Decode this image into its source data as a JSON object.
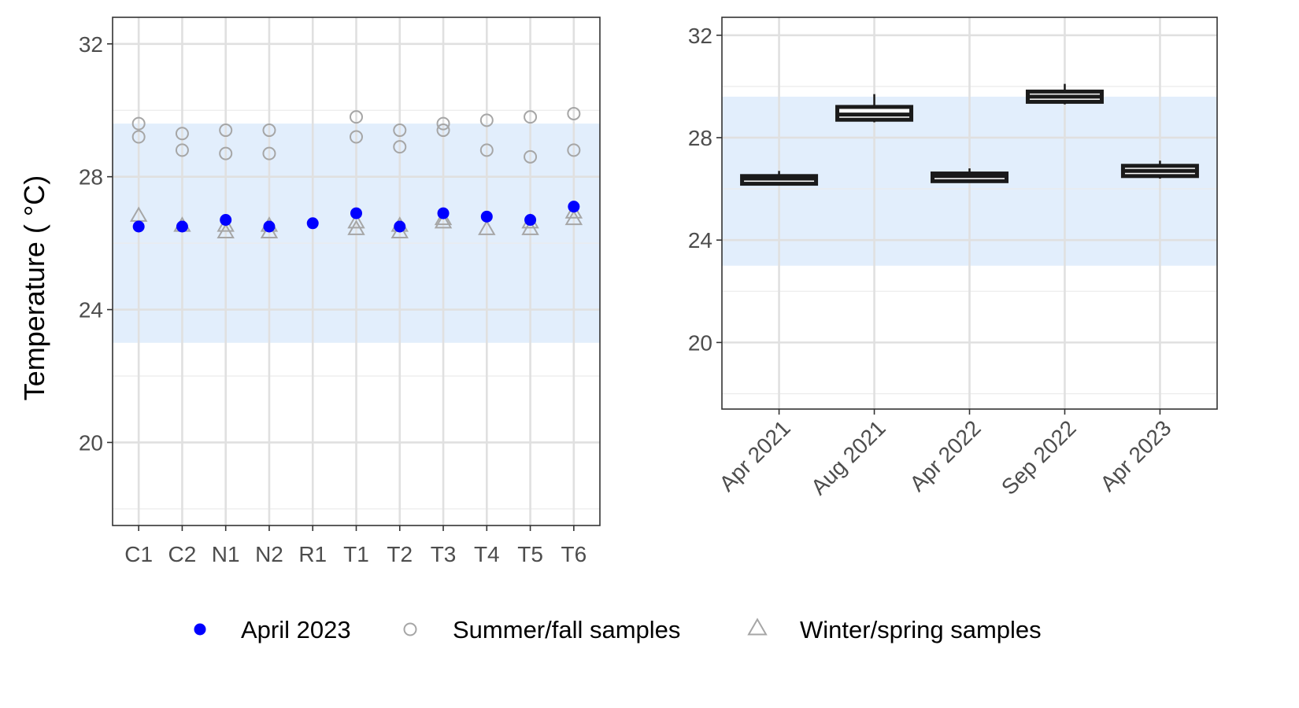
{
  "chart_data": [
    {
      "type": "scatter",
      "ylabel": "Temperature ( °C)",
      "xlabel": "",
      "ylim": [
        17.5,
        32.8
      ],
      "y_ticks": [
        20,
        24,
        28,
        32
      ],
      "grid": true,
      "reference_band": {
        "ymin": 23,
        "ymax": 29.6,
        "color": "#e2eefc"
      },
      "categories": [
        "C1",
        "C2",
        "N1",
        "N2",
        "R1",
        "T1",
        "T2",
        "T3",
        "T4",
        "T5",
        "T6"
      ],
      "series": [
        {
          "name": "April 2023",
          "marker": "filled-circle",
          "color": "#0000ff",
          "values": [
            26.5,
            26.5,
            26.7,
            26.5,
            26.6,
            26.9,
            26.5,
            26.9,
            26.8,
            26.7,
            27.1
          ]
        },
        {
          "name": "Summer/fall samples",
          "marker": "open-circle",
          "color": "#a6a6a6",
          "points": [
            {
              "x": "C1",
              "y": 29.6
            },
            {
              "x": "C1",
              "y": 29.2
            },
            {
              "x": "C2",
              "y": 29.3
            },
            {
              "x": "C2",
              "y": 28.8
            },
            {
              "x": "N1",
              "y": 29.4
            },
            {
              "x": "N1",
              "y": 28.7
            },
            {
              "x": "N2",
              "y": 29.4
            },
            {
              "x": "N2",
              "y": 28.7
            },
            {
              "x": "T1",
              "y": 29.8
            },
            {
              "x": "T1",
              "y": 29.2
            },
            {
              "x": "T2",
              "y": 29.4
            },
            {
              "x": "T2",
              "y": 28.9
            },
            {
              "x": "T3",
              "y": 29.6
            },
            {
              "x": "T3",
              "y": 29.4
            },
            {
              "x": "T4",
              "y": 29.7
            },
            {
              "x": "T4",
              "y": 28.8
            },
            {
              "x": "T5",
              "y": 29.8
            },
            {
              "x": "T5",
              "y": 28.6
            },
            {
              "x": "T6",
              "y": 29.9
            },
            {
              "x": "T6",
              "y": 28.8
            }
          ]
        },
        {
          "name": "Winter/spring samples",
          "marker": "open-triangle",
          "color": "#a6a6a6",
          "points": [
            {
              "x": "C1",
              "y": 26.8
            },
            {
              "x": "C2",
              "y": 26.5
            },
            {
              "x": "N1",
              "y": 26.5
            },
            {
              "x": "N1",
              "y": 26.3
            },
            {
              "x": "N2",
              "y": 26.5
            },
            {
              "x": "N2",
              "y": 26.3
            },
            {
              "x": "T1",
              "y": 26.6
            },
            {
              "x": "T1",
              "y": 26.4
            },
            {
              "x": "T2",
              "y": 26.5
            },
            {
              "x": "T2",
              "y": 26.3
            },
            {
              "x": "T3",
              "y": 26.7
            },
            {
              "x": "T3",
              "y": 26.6
            },
            {
              "x": "T4",
              "y": 26.4
            },
            {
              "x": "T5",
              "y": 26.6
            },
            {
              "x": "T5",
              "y": 26.4
            },
            {
              "x": "T6",
              "y": 26.9
            },
            {
              "x": "T6",
              "y": 26.7
            }
          ]
        }
      ]
    },
    {
      "type": "box",
      "xlabel": "",
      "ylabel": "",
      "ylim": [
        17.4,
        32.7
      ],
      "y_ticks": [
        20,
        24,
        28,
        32
      ],
      "grid": true,
      "reference_band": {
        "ymin": 23,
        "ymax": 29.6,
        "color": "#e2eefc"
      },
      "categories": [
        "Apr 2021",
        "Aug 2021",
        "Apr 2022",
        "Sep 2022",
        "Apr 2023"
      ],
      "boxes": [
        {
          "label": "Apr 2021",
          "min": 26.2,
          "q1": 26.2,
          "median": 26.4,
          "q3": 26.5,
          "max": 26.7
        },
        {
          "label": "Aug 2021",
          "min": 28.6,
          "q1": 28.7,
          "median": 28.9,
          "q3": 29.2,
          "max": 29.7
        },
        {
          "label": "Apr 2022",
          "min": 26.3,
          "q1": 26.3,
          "median": 26.5,
          "q3": 26.6,
          "max": 26.8
        },
        {
          "label": "Sep 2022",
          "min": 29.3,
          "q1": 29.4,
          "median": 29.6,
          "q3": 29.8,
          "max": 30.1
        },
        {
          "label": "Apr 2023",
          "min": 26.4,
          "q1": 26.5,
          "median": 26.7,
          "q3": 26.9,
          "max": 27.1
        }
      ]
    }
  ],
  "legend": {
    "placement": "bottom",
    "items": [
      {
        "label": "April 2023",
        "marker": "filled-circle",
        "color": "#0000ff"
      },
      {
        "label": "Summer/fall samples",
        "marker": "open-circle",
        "color": "#a6a6a6"
      },
      {
        "label": "Winter/spring samples",
        "marker": "open-triangle",
        "color": "#a6a6a6"
      }
    ]
  }
}
